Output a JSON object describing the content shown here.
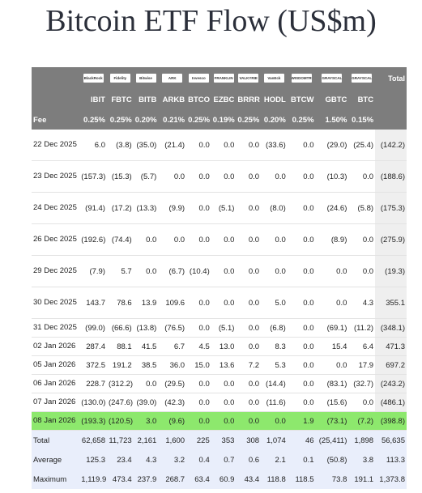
{
  "title": "Bitcoin ETF Flow (US$m)",
  "logos": [
    {
      "icon": "blackrock-logo-icon",
      "text": "BlackRock"
    },
    {
      "icon": "fidelity-logo-icon",
      "text": "Fidelity"
    },
    {
      "icon": "bitwise-logo-icon",
      "text": "Bitwise"
    },
    {
      "icon": "ark-logo-icon",
      "text": "ARK"
    },
    {
      "icon": "invesco-logo-icon",
      "text": "Invesco"
    },
    {
      "icon": "franklin-logo-icon",
      "text": "FRANKLIN"
    },
    {
      "icon": "valkyrie-logo-icon",
      "text": "VALKYRIE"
    },
    {
      "icon": "vaneck-logo-icon",
      "text": "VanEck"
    },
    {
      "icon": "wisdomtree-logo-icon",
      "text": "WISDOMTREE"
    },
    {
      "icon": "grayscale-gbtc-logo-icon",
      "text": "GRAYSCALE"
    },
    {
      "icon": "grayscale-btc-logo-icon",
      "text": "GRAYSCALE"
    }
  ],
  "chart_data": {
    "type": "table",
    "title": "Bitcoin ETF Flow (US$m)",
    "total_header": "Total",
    "fee_label": "Fee",
    "columns": [
      "IBIT",
      "FBTC",
      "BITB",
      "ARKB",
      "BTCO",
      "EZBC",
      "BRRR",
      "HODL",
      "BTCW",
      "GBTC",
      "BTC"
    ],
    "fees": [
      "0.25%",
      "0.25%",
      "0.20%",
      "0.21%",
      "0.25%",
      "0.19%",
      "0.25%",
      "0.20%",
      "0.25%",
      "1.50%",
      "0.15%"
    ],
    "rows": [
      {
        "date": "22 Dec 2025",
        "values": [
          "6.0",
          "(3.8)",
          "(35.0)",
          "(21.4)",
          "0.0",
          "0.0",
          "0.0",
          "(33.6)",
          "0.0",
          "(29.0)",
          "(25.4)"
        ],
        "total": "(142.2)"
      },
      {
        "date": "23 Dec 2025",
        "values": [
          "(157.3)",
          "(15.3)",
          "(5.7)",
          "0.0",
          "0.0",
          "0.0",
          "0.0",
          "0.0",
          "0.0",
          "(10.3)",
          "0.0"
        ],
        "total": "(188.6)"
      },
      {
        "date": "24 Dec 2025",
        "values": [
          "(91.4)",
          "(17.2)",
          "(13.3)",
          "(9.9)",
          "0.0",
          "(5.1)",
          "0.0",
          "(8.0)",
          "0.0",
          "(24.6)",
          "(5.8)"
        ],
        "total": "(175.3)"
      },
      {
        "date": "26 Dec 2025",
        "values": [
          "(192.6)",
          "(74.4)",
          "0.0",
          "0.0",
          "0.0",
          "0.0",
          "0.0",
          "0.0",
          "0.0",
          "(8.9)",
          "0.0"
        ],
        "total": "(275.9)"
      },
      {
        "date": "29 Dec 2025",
        "values": [
          "(7.9)",
          "5.7",
          "0.0",
          "(6.7)",
          "(10.4)",
          "0.0",
          "0.0",
          "0.0",
          "0.0",
          "0.0",
          "0.0"
        ],
        "total": "(19.3)"
      },
      {
        "date": "30 Dec 2025",
        "values": [
          "143.7",
          "78.6",
          "13.9",
          "109.6",
          "0.0",
          "0.0",
          "0.0",
          "5.0",
          "0.0",
          "0.0",
          "4.3"
        ],
        "total": "355.1"
      },
      {
        "date": "31 Dec 2025",
        "values": [
          "(99.0)",
          "(66.6)",
          "(13.8)",
          "(76.5)",
          "0.0",
          "(5.1)",
          "0.0",
          "(6.8)",
          "0.0",
          "(69.1)",
          "(11.2)"
        ],
        "total": "(348.1)"
      },
      {
        "date": "02 Jan 2026",
        "values": [
          "287.4",
          "88.1",
          "41.5",
          "6.7",
          "4.5",
          "13.0",
          "0.0",
          "8.3",
          "0.0",
          "15.4",
          "6.4"
        ],
        "total": "471.3"
      },
      {
        "date": "05 Jan 2026",
        "values": [
          "372.5",
          "191.2",
          "38.5",
          "36.0",
          "15.0",
          "13.6",
          "7.2",
          "5.3",
          "0.0",
          "0.0",
          "17.9"
        ],
        "total": "697.2"
      },
      {
        "date": "06 Jan 2026",
        "values": [
          "228.7",
          "(312.2)",
          "0.0",
          "(29.5)",
          "0.0",
          "0.0",
          "0.0",
          "(14.4)",
          "0.0",
          "(83.1)",
          "(32.7)"
        ],
        "total": "(243.2)"
      },
      {
        "date": "07 Jan 2026",
        "values": [
          "(130.0)",
          "(247.6)",
          "(39.0)",
          "(42.3)",
          "0.0",
          "0.0",
          "0.0",
          "(11.6)",
          "0.0",
          "(15.6)",
          "0.0"
        ],
        "total": "(486.1)"
      },
      {
        "date": "08 Jan 2026",
        "values": [
          "(193.3)",
          "(120.5)",
          "3.0",
          "(9.6)",
          "0.0",
          "0.0",
          "0.0",
          "0.0",
          "1.9",
          "(73.1)",
          "(7.2)"
        ],
        "total": "(398.8)"
      }
    ],
    "summary": [
      {
        "label": "Total",
        "values": [
          "62,658",
          "11,723",
          "2,161",
          "1,600",
          "225",
          "353",
          "308",
          "1,074",
          "46",
          "(25,411)",
          "1,898"
        ],
        "total": "56,635"
      },
      {
        "label": "Average",
        "values": [
          "125.3",
          "23.4",
          "4.3",
          "3.2",
          "0.4",
          "0.7",
          "0.6",
          "2.1",
          "0.1",
          "(50.8)",
          "3.8"
        ],
        "total": "113.3"
      },
      {
        "label": "Maximum",
        "values": [
          "1,119.9",
          "473.4",
          "237.9",
          "268.7",
          "63.4",
          "60.9",
          "43.4",
          "118.8",
          "118.5",
          "73.8",
          "191.1"
        ],
        "total": "1,373.8"
      }
    ],
    "highlight_row": "08 Jan 2026",
    "colors": {
      "header": "#7d7d7d",
      "negative": "#d42a2a",
      "highlight": "#8de86d",
      "summary": "#e9eefb"
    }
  }
}
